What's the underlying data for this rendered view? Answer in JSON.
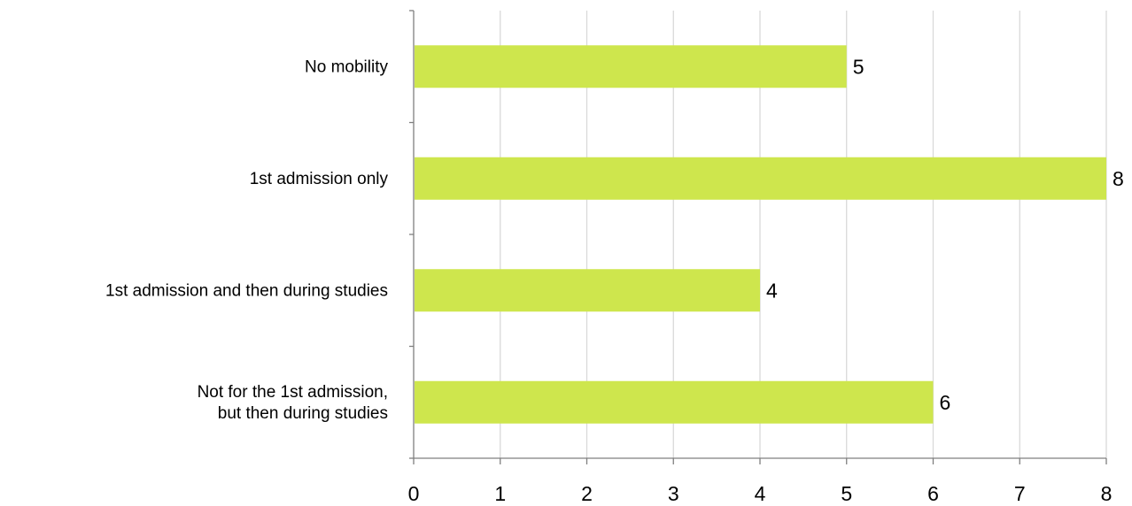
{
  "chart_data": {
    "type": "bar",
    "orientation": "horizontal",
    "title": "",
    "xlabel": "",
    "ylabel": "",
    "categories": [
      [
        "No mobility"
      ],
      [
        "1st admission only"
      ],
      [
        "1st admission and then during studies"
      ],
      [
        "Not for the 1st admission,",
        "but then during studies"
      ]
    ],
    "values": [
      5,
      8,
      4,
      6
    ],
    "xlim": [
      0,
      8
    ],
    "xticks": [
      "0",
      "1",
      "2",
      "3",
      "4",
      "5",
      "6",
      "7",
      "8"
    ],
    "grid": true,
    "legend": "none",
    "bar_color": "#cee64d",
    "data_labels": true
  }
}
